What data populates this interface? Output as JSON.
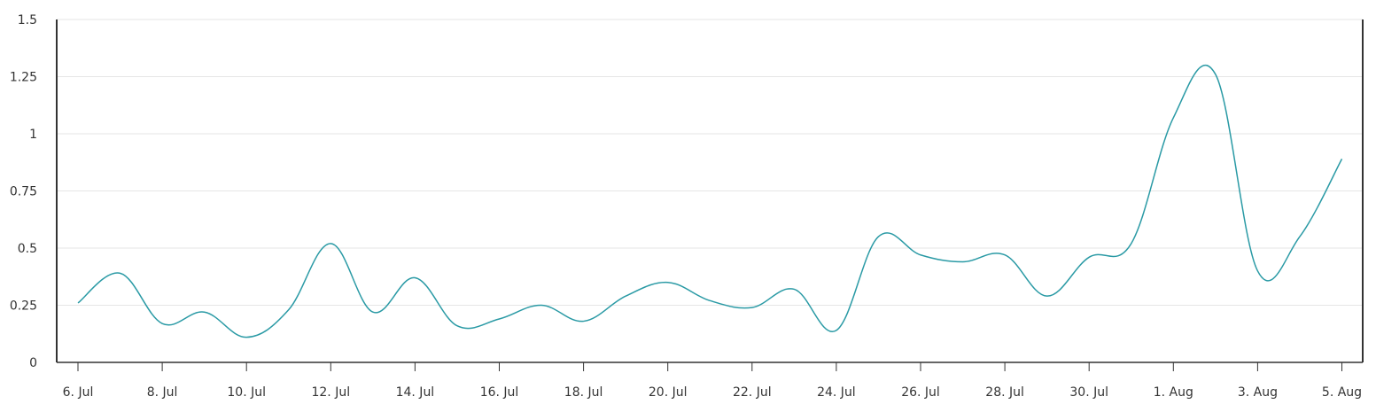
{
  "chart_data": {
    "type": "line",
    "title": "",
    "xlabel": "",
    "ylabel": "",
    "ylim": [
      0,
      1.5
    ],
    "y_ticks": [
      "0",
      "0.25",
      "0.5",
      "0.75",
      "1",
      "1.25",
      "1.5"
    ],
    "x_ticks": [
      "6. Jul",
      "8. Jul",
      "10. Jul",
      "12. Jul",
      "14. Jul",
      "16. Jul",
      "18. Jul",
      "20. Jul",
      "22. Jul",
      "24. Jul",
      "26. Jul",
      "28. Jul",
      "30. Jul",
      "1. Aug",
      "3. Aug",
      "5. Aug"
    ],
    "grid": true,
    "legend": "none",
    "colors": {
      "line": "#2a9aa5",
      "grid": "#e6e6e6",
      "axis": "#333333"
    },
    "series": [
      {
        "x": [
          "2020-07-06",
          "2020-07-07",
          "2020-07-08",
          "2020-07-09",
          "2020-07-10",
          "2020-07-11",
          "2020-07-12",
          "2020-07-13",
          "2020-07-14",
          "2020-07-15",
          "2020-07-16",
          "2020-07-17",
          "2020-07-18",
          "2020-07-19",
          "2020-07-20",
          "2020-07-21",
          "2020-07-22",
          "2020-07-23",
          "2020-07-24",
          "2020-07-25",
          "2020-07-26",
          "2020-07-27",
          "2020-07-28",
          "2020-07-29",
          "2020-07-30",
          "2020-07-31",
          "2020-08-01",
          "2020-08-02",
          "2020-08-03",
          "2020-08-04",
          "2020-08-05"
        ],
        "values": [
          0.26,
          0.39,
          0.17,
          0.22,
          0.11,
          0.23,
          0.52,
          0.22,
          0.37,
          0.16,
          0.19,
          0.25,
          0.18,
          0.29,
          0.35,
          0.27,
          0.24,
          0.32,
          0.14,
          0.55,
          0.47,
          0.44,
          0.47,
          0.29,
          0.46,
          0.52,
          1.07,
          1.26,
          0.4,
          0.55,
          0.89
        ]
      }
    ]
  }
}
